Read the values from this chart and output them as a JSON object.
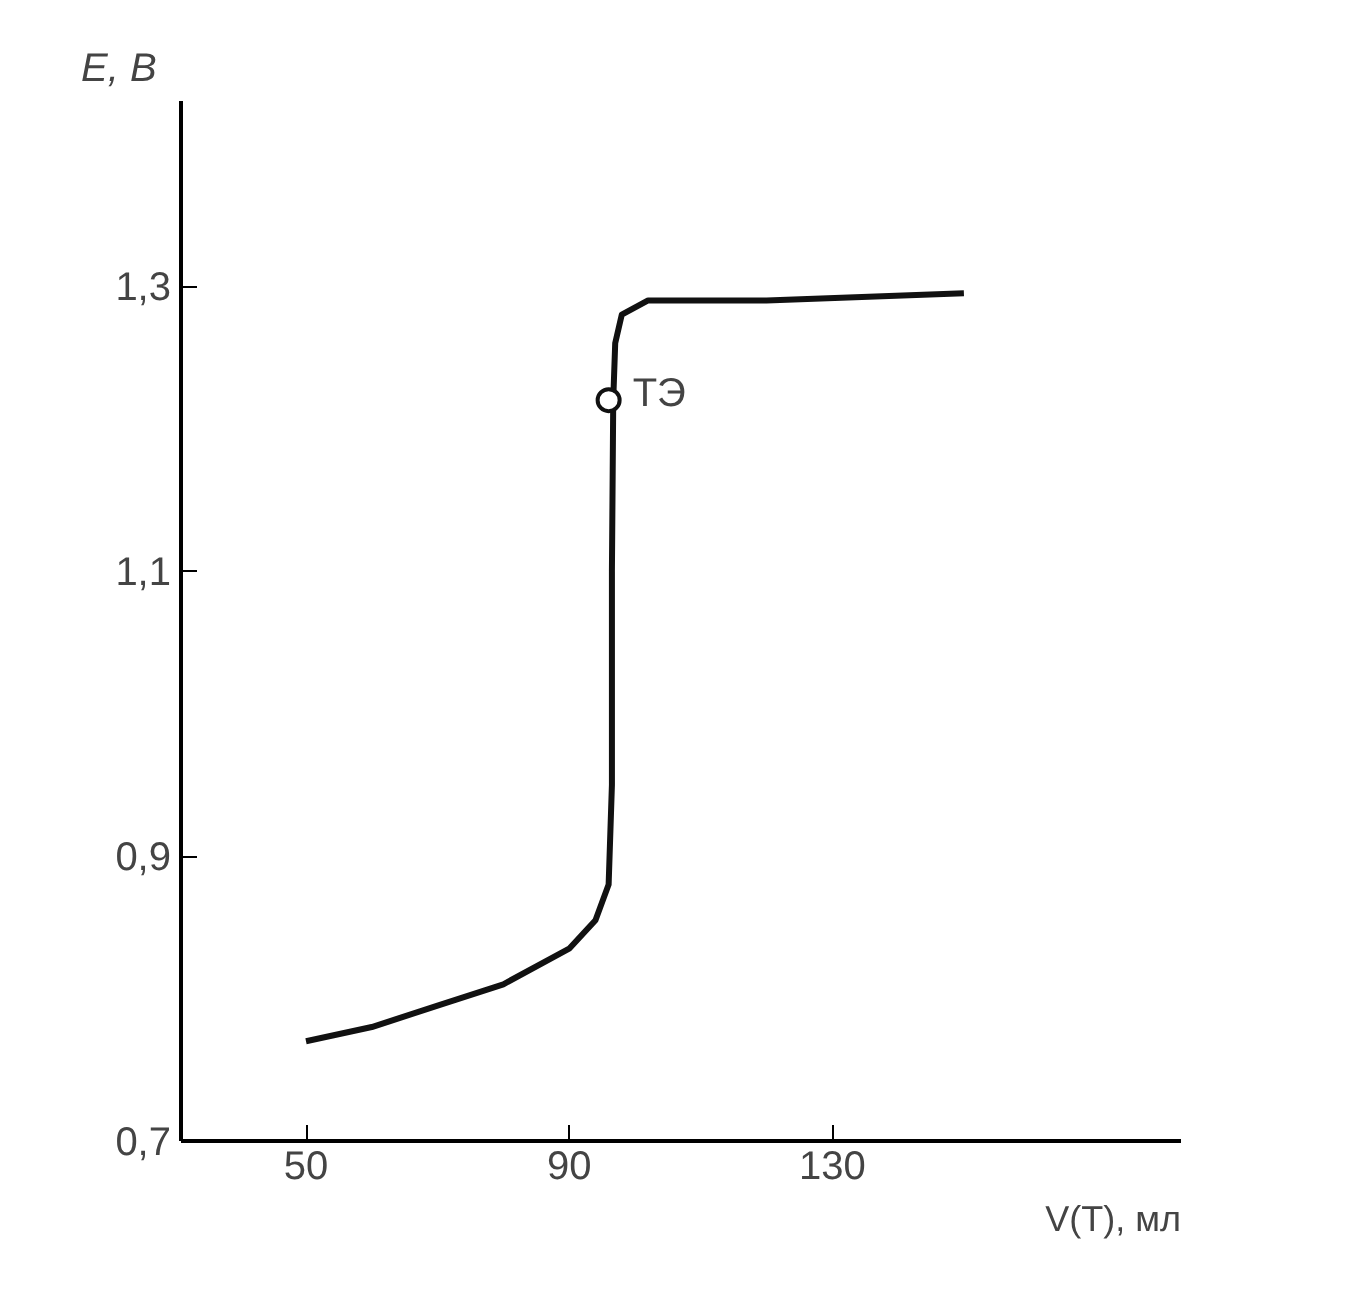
{
  "chart_data": {
    "type": "line",
    "xlabel": "V(T), мл",
    "ylabel": "E, В",
    "xlim": [
      31,
      183
    ],
    "ylim": [
      0.7,
      1.43
    ],
    "xticks": [
      50,
      90,
      130
    ],
    "yticks": [
      {
        "value": 0.7,
        "label": "0,7"
      },
      {
        "value": 0.9,
        "label": "0,9"
      },
      {
        "value": 1.1,
        "label": "1,1"
      },
      {
        "value": 1.3,
        "label": "1,3"
      }
    ],
    "series": [
      {
        "color": "#111111",
        "x": [
          50,
          60,
          70,
          80,
          90,
          94,
          96,
          96.5,
          96.5,
          96.7,
          97,
          98,
          102,
          120,
          150
        ],
        "values": [
          0.77,
          0.78,
          0.795,
          0.81,
          0.835,
          0.855,
          0.88,
          0.95,
          1.1,
          1.22,
          1.26,
          1.28,
          1.29,
          1.29,
          1.295
        ]
      },
      {
        "type": "scatter",
        "color": "#111111",
        "marker": "circle",
        "x": [
          96
        ],
        "values": [
          1.22
        ]
      }
    ],
    "annotations": [
      {
        "text": "ТЭ",
        "x": 96,
        "y": 1.22
      }
    ],
    "grid": false
  }
}
